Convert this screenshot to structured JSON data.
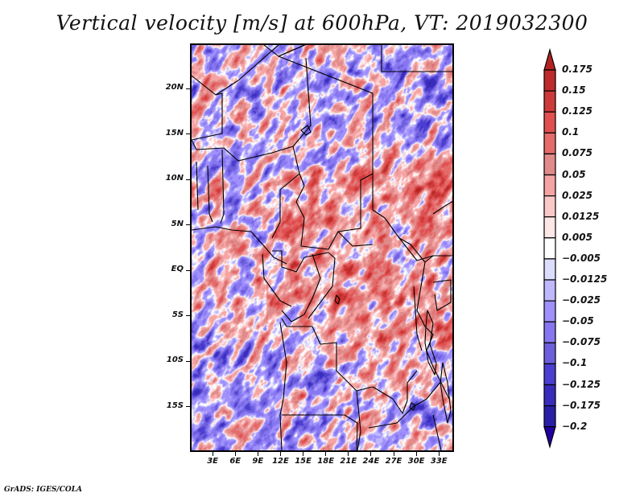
{
  "title": "Vertical velocity [m/s] at 600hPa, VT: 2019032300",
  "credit": "GrADS: IGES/COLA",
  "map": {
    "variable": "Vertical velocity",
    "units": "m/s",
    "level": "600hPa",
    "valid_time": "2019032300",
    "lon_range_deg": [
      0,
      35
    ],
    "lat_range_deg": [
      -20,
      25
    ],
    "x_ticks": [
      {
        "value": 3,
        "label": "3E"
      },
      {
        "value": 6,
        "label": "6E"
      },
      {
        "value": 9,
        "label": "9E"
      },
      {
        "value": 12,
        "label": "12E"
      },
      {
        "value": 15,
        "label": "15E"
      },
      {
        "value": 18,
        "label": "18E"
      },
      {
        "value": 21,
        "label": "21E"
      },
      {
        "value": 24,
        "label": "24E"
      },
      {
        "value": 27,
        "label": "27E"
      },
      {
        "value": 30,
        "label": "30E"
      },
      {
        "value": 33,
        "label": "33E"
      }
    ],
    "y_ticks": [
      {
        "value": 20,
        "label": "20N"
      },
      {
        "value": 15,
        "label": "15N"
      },
      {
        "value": 10,
        "label": "10N"
      },
      {
        "value": 5,
        "label": "5N"
      },
      {
        "value": 0,
        "label": "EQ"
      },
      {
        "value": -5,
        "label": "5S"
      },
      {
        "value": -10,
        "label": "10S"
      },
      {
        "value": -15,
        "label": "15S"
      }
    ]
  },
  "colorbar": {
    "levels": [
      0.175,
      0.15,
      0.125,
      0.1,
      0.075,
      0.05,
      0.025,
      0.0125,
      0.005,
      -0.005,
      -0.0125,
      -0.025,
      -0.05,
      -0.075,
      -0.1,
      -0.125,
      -0.175,
      -0.2
    ],
    "labels": [
      "0.175",
      "0.15",
      "0.125",
      "0.1",
      "0.075",
      "0.05",
      "0.025",
      "0.0125",
      "0.005",
      "−0.005",
      "−0.0125",
      "−0.025",
      "−0.05",
      "−0.075",
      "−0.1",
      "−0.125",
      "−0.175",
      "−0.2"
    ],
    "colors_top_to_bottom": [
      "#b22222",
      "#be2b2b",
      "#cd3a3a",
      "#e05050",
      "#e56b6b",
      "#e08a8a",
      "#f5a3a3",
      "#fbc8c8",
      "#fde6e6",
      "#ffffff",
      "#dcdcfc",
      "#c0b8fd",
      "#a090fc",
      "#8676f0",
      "#6d5edc",
      "#4b3ed0",
      "#3a2cbb",
      "#2a1ea6",
      "#2200a0"
    ]
  }
}
